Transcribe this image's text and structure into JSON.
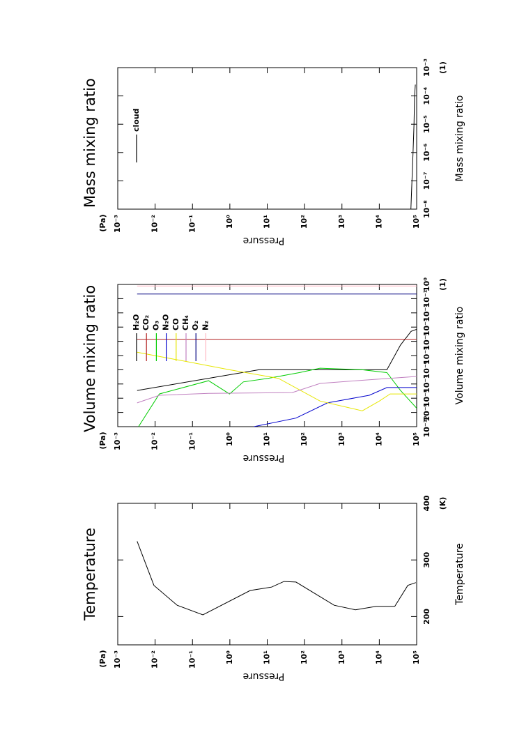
{
  "chart_data": [
    {
      "type": "line",
      "title": "Temperature",
      "x_label": "Pressure",
      "x_unit": "(Pa)",
      "y_label": "Temperature",
      "y_unit": "(K)",
      "xscale": "log",
      "xlim": [
        0.001,
        100000
      ],
      "xticks": [
        {
          "value": 0.001,
          "label": "10⁻³"
        },
        {
          "value": 0.01,
          "label": "10⁻²"
        },
        {
          "value": 0.1,
          "label": "10⁻¹"
        },
        {
          "value": 1,
          "label": "10⁰"
        },
        {
          "value": 10,
          "label": "10¹"
        },
        {
          "value": 100,
          "label": "10²"
        },
        {
          "value": 1000,
          "label": "10³"
        },
        {
          "value": 10000,
          "label": "10⁴"
        },
        {
          "value": 100000,
          "label": "10⁵"
        }
      ],
      "yscale": "linear",
      "ylim": [
        150,
        400
      ],
      "yticks": [
        200,
        300,
        400
      ],
      "series": [
        {
          "color": "#000000",
          "x": [
            0.0033,
            0.0093,
            0.039,
            0.19,
            3.5,
            13,
            28,
            59,
            620,
            2300,
            8300,
            26000,
            58000,
            95000
          ],
          "values": [
            333,
            255,
            220,
            203,
            246,
            252,
            262,
            261,
            220,
            212,
            218,
            218,
            255,
            260
          ]
        }
      ]
    },
    {
      "type": "line",
      "title": "Volume mixing ratio",
      "x_label": "Pressure",
      "x_unit": "(Pa)",
      "y_label": "Volume mixing ratio",
      "y_unit": "(1)",
      "xscale": "log",
      "xlim": [
        0.001,
        100000
      ],
      "xticks": [
        {
          "value": 0.001,
          "label": "10⁻³"
        },
        {
          "value": 0.01,
          "label": "10⁻²"
        },
        {
          "value": 0.1,
          "label": "10⁻¹"
        },
        {
          "value": 1,
          "label": "10⁰"
        },
        {
          "value": 10,
          "label": "10¹"
        },
        {
          "value": 100,
          "label": "10²"
        },
        {
          "value": 1000,
          "label": "10³"
        },
        {
          "value": 10000,
          "label": "10⁴"
        },
        {
          "value": 100000,
          "label": "10⁵"
        }
      ],
      "yscale": "log",
      "ylim": [
        1e-10,
        1
      ],
      "yticks": [
        {
          "value": 1e-10,
          "label": "10⁻¹⁰"
        },
        {
          "value": 1e-09,
          "label": "10⁻⁹"
        },
        {
          "value": 1e-08,
          "label": "10⁻⁸"
        },
        {
          "value": 1e-07,
          "label": "10⁻⁷"
        },
        {
          "value": 1e-06,
          "label": "10⁻⁶"
        },
        {
          "value": 1e-05,
          "label": "10⁻⁵"
        },
        {
          "value": 0.0001,
          "label": "10⁻⁴"
        },
        {
          "value": 0.001,
          "label": "10⁻³"
        },
        {
          "value": 0.01,
          "label": "10⁻²"
        },
        {
          "value": 0.1,
          "label": "10⁻¹"
        },
        {
          "value": 1,
          "label": "10⁰"
        }
      ],
      "legend": "upper-left",
      "series": [
        {
          "name": "H₂O",
          "color": "#000000",
          "x": [
            0.0033,
            6,
            16000,
            37000,
            71000,
            100000
          ],
          "values": [
            3.5e-08,
            1e-06,
            1e-06,
            5.5e-05,
            0.0005,
            0.0007
          ]
        },
        {
          "name": "CO₂",
          "color": "#b22222",
          "x": [
            0.0033,
            100000
          ],
          "values": [
            0.00014,
            0.00014
          ]
        },
        {
          "name": "O₃",
          "color": "#00cc00",
          "x": [
            0.0036,
            0.013,
            0.27,
            0.98,
            2.3,
            10.5,
            72,
            260,
            3500,
            16000,
            37000,
            100000
          ],
          "values": [
            1e-10,
            2e-08,
            1.7e-07,
            2e-08,
            1.4e-07,
            2.5e-07,
            6.3e-07,
            1.3e-06,
            1e-06,
            6.3e-07,
            3.5e-08,
            2e-09
          ]
        },
        {
          "name": "N₂O",
          "color": "#0000cc",
          "x": [
            4.4,
            59,
            410,
            5400,
            16000,
            100000
          ],
          "values": [
            1e-10,
            4e-10,
            4.7e-09,
            1.6e-08,
            5.6e-08,
            5.6e-08
          ]
        },
        {
          "name": "CO",
          "color": "#e6e600",
          "x": [
            0.0033,
            0.031,
            0.98,
            20,
            260,
            3500,
            10000,
            19500,
            100000
          ],
          "values": [
            1.7e-05,
            5.6e-06,
            1e-06,
            2.5e-07,
            6.3e-09,
            1.3e-09,
            6.3e-09,
            2e-08,
            2e-08
          ]
        },
        {
          "name": "CH₄",
          "color": "#c080c0",
          "x": [
            0.0033,
            0.013,
            0.27,
            47,
            260,
            5400,
            100000
          ],
          "values": [
            4.7e-09,
            1.6e-08,
            2.2e-08,
            2.5e-08,
            1.1e-07,
            2e-07,
            3.4e-07
          ]
        },
        {
          "name": "O₂",
          "color": "#000080",
          "x": [
            0.0033,
            100000
          ],
          "values": [
            0.21,
            0.21
          ]
        },
        {
          "name": "N₂",
          "color": "#ffb6c1",
          "x": [
            0.0033,
            100000
          ],
          "values": [
            0.78,
            0.78
          ]
        }
      ]
    },
    {
      "type": "line",
      "title": "Mass mixing ratio",
      "x_label": "Pressure",
      "x_unit": "(Pa)",
      "y_label": "Mass mixing ratio",
      "y_unit": "(1)",
      "xscale": "log",
      "xlim": [
        0.001,
        100000
      ],
      "xticks": [
        {
          "value": 0.001,
          "label": "10⁻³"
        },
        {
          "value": 0.01,
          "label": "10⁻²"
        },
        {
          "value": 0.1,
          "label": "10⁻¹"
        },
        {
          "value": 1,
          "label": "10⁰"
        },
        {
          "value": 10,
          "label": "10¹"
        },
        {
          "value": 100,
          "label": "10²"
        },
        {
          "value": 1000,
          "label": "10³"
        },
        {
          "value": 10000,
          "label": "10⁴"
        },
        {
          "value": 100000,
          "label": "10⁵"
        }
      ],
      "yscale": "log",
      "ylim": [
        1e-08,
        0.001
      ],
      "yticks": [
        {
          "value": 1e-08,
          "label": "10⁻⁸"
        },
        {
          "value": 1e-07,
          "label": "10⁻⁷"
        },
        {
          "value": 1e-06,
          "label": "10⁻⁶"
        },
        {
          "value": 1e-05,
          "label": "10⁻⁵"
        },
        {
          "value": 0.0001,
          "label": "10⁻⁴"
        },
        {
          "value": 0.001,
          "label": "10⁻³"
        }
      ],
      "legend": "upper-left",
      "series": [
        {
          "name": "cloud",
          "color": "#000000",
          "x": [
            70000,
            80000,
            85000,
            88000,
            92000
          ],
          "values": [
            1e-08,
            1e-06,
            1e-05,
            0.0001,
            0.00025
          ]
        }
      ]
    }
  ]
}
